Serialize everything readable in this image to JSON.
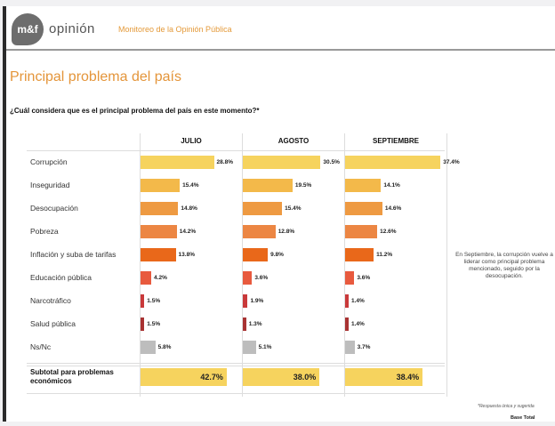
{
  "header": {
    "logo_text": "m&f",
    "brand": "opinión",
    "subtitle": "Monitoreo de la Opinión Pública"
  },
  "title": "Principal problema del país",
  "question": "¿Cuál considera que es el principal problema del país en este momento?*",
  "side_note": "En Septiembre, la corrupción vuelve a liderar como principal problema mencionado, seguido por la desocupación.",
  "footnote": "*Respuesta única y sugerida",
  "base": "Base Total",
  "colors": {
    "Corrupción": "#f6d35e",
    "Inseguridad": "#f3b94a",
    "Desocupación": "#ee9a42",
    "Pobreza": "#ec8643",
    "Inflación y suba de tarifas": "#e9681a",
    "Educación pública": "#e85a3e",
    "Narcotráfico": "#c9393a",
    "Salud pública": "#a83232",
    "Ns/Nc": "#bdbdbd"
  },
  "chart_data": {
    "type": "bar",
    "orientation": "horizontal",
    "title": "Principal problema del país",
    "categories": [
      "Corrupción",
      "Inseguridad",
      "Desocupación",
      "Pobreza",
      "Inflación y suba de tarifas",
      "Educación pública",
      "Narcotráfico",
      "Salud pública",
      "Ns/Nc"
    ],
    "series": [
      {
        "name": "JULIO",
        "values": [
          28.8,
          15.4,
          14.8,
          14.2,
          13.8,
          4.2,
          1.5,
          1.5,
          5.8
        ],
        "labels": [
          "28.8%",
          "15.4%",
          "14.8%",
          "14.2%",
          "13.8%",
          "4.2%",
          "1.5%",
          "1.5%",
          "5.8%"
        ],
        "subtotal": "42.7%",
        "subtotal_value": 42.7
      },
      {
        "name": "AGOSTO",
        "values": [
          30.5,
          19.5,
          15.4,
          12.8,
          9.8,
          3.6,
          1.9,
          1.3,
          5.1
        ],
        "labels": [
          "30.5%",
          "19.5%",
          "15.4%",
          "12.8%",
          "9.8%",
          "3.6%",
          "1.9%",
          "1.3%",
          "5.1%"
        ],
        "subtotal": "38.0%",
        "subtotal_value": 38.0
      },
      {
        "name": "SEPTIEMBRE",
        "values": [
          37.4,
          14.1,
          14.6,
          12.6,
          11.2,
          3.6,
          1.4,
          1.4,
          3.7
        ],
        "labels": [
          "37.4%",
          "14.1%",
          "14.6%",
          "12.6%",
          "11.2%",
          "3.6%",
          "1.4%",
          "1.4%",
          "3.7%"
        ],
        "subtotal": "38.4%",
        "subtotal_value": 38.4
      }
    ],
    "subtotal_label": "Subtotal para problemas económicos",
    "xlim": [
      0,
      45
    ],
    "unit": "%"
  }
}
